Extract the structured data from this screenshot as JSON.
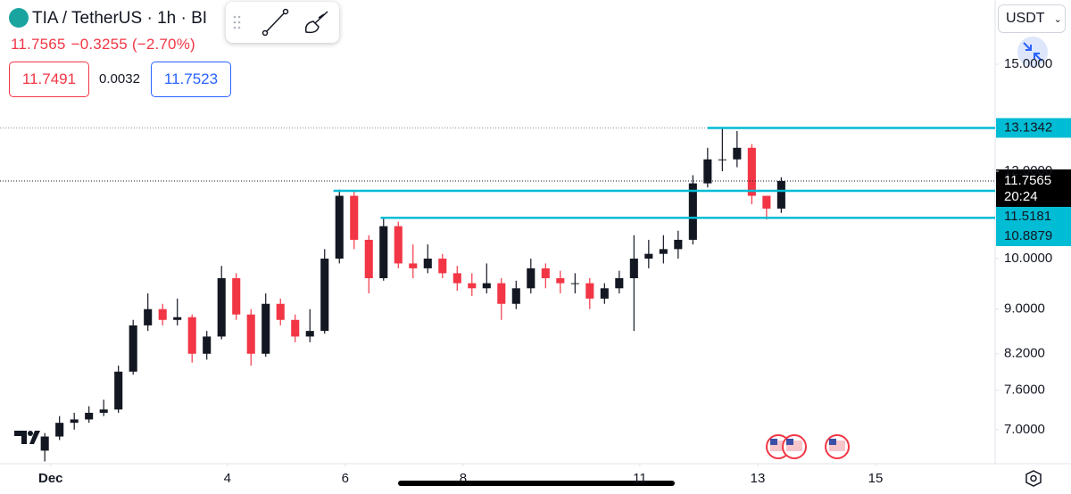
{
  "header": {
    "symbol": "TIA / TetherUS · 1h · BI",
    "last": "11.7565",
    "change": "−0.3255 (−2.70%)",
    "bid": "11.7491",
    "spread": "0.0032",
    "ask": "11.7523",
    "currency": "USDT"
  },
  "chart_data": {
    "type": "candlestick",
    "x": [
      0.9,
      1.15,
      1.4,
      1.65,
      1.9,
      2.15,
      2.4,
      2.65,
      2.9,
      3.15,
      3.4,
      3.65,
      3.9,
      4.15,
      4.4,
      4.65,
      4.9,
      5.15,
      5.4,
      5.65,
      5.9,
      6.15,
      6.4,
      6.65,
      6.9,
      7.15,
      7.4,
      7.65,
      7.9,
      8.15,
      8.4,
      8.65,
      8.9,
      9.15,
      9.4,
      9.65,
      9.9,
      10.15,
      10.4,
      10.65,
      10.9,
      11.15,
      11.4,
      11.65,
      11.9,
      12.15,
      12.4,
      12.65,
      12.9,
      13.15,
      13.4
    ],
    "open": [
      6.7,
      6.9,
      7.1,
      7.15,
      7.25,
      7.3,
      7.9,
      8.7,
      9.0,
      8.8,
      8.85,
      8.2,
      8.5,
      9.6,
      8.9,
      8.2,
      9.1,
      8.8,
      8.5,
      8.6,
      10.0,
      11.4,
      10.4,
      9.6,
      10.7,
      9.9,
      9.8,
      10.0,
      9.7,
      9.5,
      9.4,
      9.5,
      9.1,
      9.4,
      9.8,
      9.6,
      9.5,
      9.5,
      9.2,
      9.4,
      9.6,
      10.0,
      10.1,
      10.2,
      10.4,
      11.7,
      12.3,
      12.3,
      12.6,
      11.4,
      11.1
    ],
    "high": [
      6.95,
      7.2,
      7.25,
      7.35,
      7.45,
      8.0,
      8.8,
      9.3,
      9.1,
      9.2,
      8.9,
      8.6,
      9.85,
      9.7,
      9.0,
      9.3,
      9.2,
      8.9,
      9.0,
      10.2,
      11.55,
      11.5,
      10.5,
      10.9,
      10.8,
      10.3,
      10.3,
      10.1,
      9.85,
      9.7,
      9.9,
      9.6,
      9.55,
      10.0,
      9.9,
      9.75,
      9.7,
      9.6,
      9.5,
      9.75,
      10.5,
      10.4,
      10.5,
      10.6,
      11.9,
      12.6,
      13.13,
      13.05,
      12.7,
      11.4,
      11.85
    ],
    "low": [
      6.55,
      6.85,
      7.0,
      7.1,
      7.2,
      7.25,
      7.85,
      8.6,
      8.7,
      8.7,
      8.05,
      8.1,
      8.45,
      8.8,
      8.0,
      8.15,
      8.7,
      8.4,
      8.4,
      8.55,
      9.9,
      10.2,
      9.3,
      9.55,
      9.8,
      9.6,
      9.7,
      9.6,
      9.35,
      9.25,
      9.3,
      8.8,
      9.0,
      9.3,
      9.4,
      9.3,
      9.3,
      9.0,
      9.1,
      9.3,
      8.6,
      9.8,
      9.9,
      10.0,
      10.3,
      11.6,
      12.0,
      12.1,
      11.2,
      10.85,
      11.0
    ],
    "close": [
      6.9,
      7.1,
      7.15,
      7.25,
      7.3,
      7.9,
      8.7,
      9.0,
      8.8,
      8.85,
      8.2,
      8.5,
      9.6,
      8.9,
      8.2,
      9.1,
      8.8,
      8.5,
      8.6,
      10.0,
      11.4,
      10.4,
      9.6,
      10.7,
      9.9,
      9.8,
      10.0,
      9.7,
      9.5,
      9.4,
      9.5,
      9.1,
      9.4,
      9.8,
      9.6,
      9.5,
      9.5,
      9.2,
      9.4,
      9.6,
      10.0,
      10.1,
      10.2,
      10.4,
      11.7,
      12.3,
      12.3,
      12.6,
      11.4,
      11.1,
      11.7565
    ],
    "up_color": "#131722",
    "down_color": "#f23645",
    "line_color": "#00bcd4",
    "log_scale": true,
    "xlim": [
      0.14,
      17.03
    ],
    "xticks": [
      {
        "value": 1,
        "label": "Dec"
      },
      4,
      6,
      8,
      11,
      13,
      15
    ],
    "ylim": [
      6.52,
      17.15
    ],
    "yticks": [
      {
        "value": 7,
        "label": "7.0000"
      },
      {
        "value": 7.6,
        "label": "7.6000"
      },
      {
        "value": 8.2,
        "label": "8.2000"
      },
      {
        "value": 9,
        "label": "9.0000"
      },
      {
        "value": 10,
        "label": "10.0000"
      },
      {
        "value": 12,
        "label": "12.0000"
      },
      {
        "value": 15,
        "label": "15.0000"
      }
    ],
    "lines": [
      {
        "value": 13.1342,
        "start": 12.15
      },
      {
        "value": 11.5181,
        "start": 5.8
      },
      {
        "value": 10.8879,
        "start": 6.6
      }
    ],
    "last_price": {
      "value": 11.7565,
      "countdown": "20:24"
    }
  }
}
